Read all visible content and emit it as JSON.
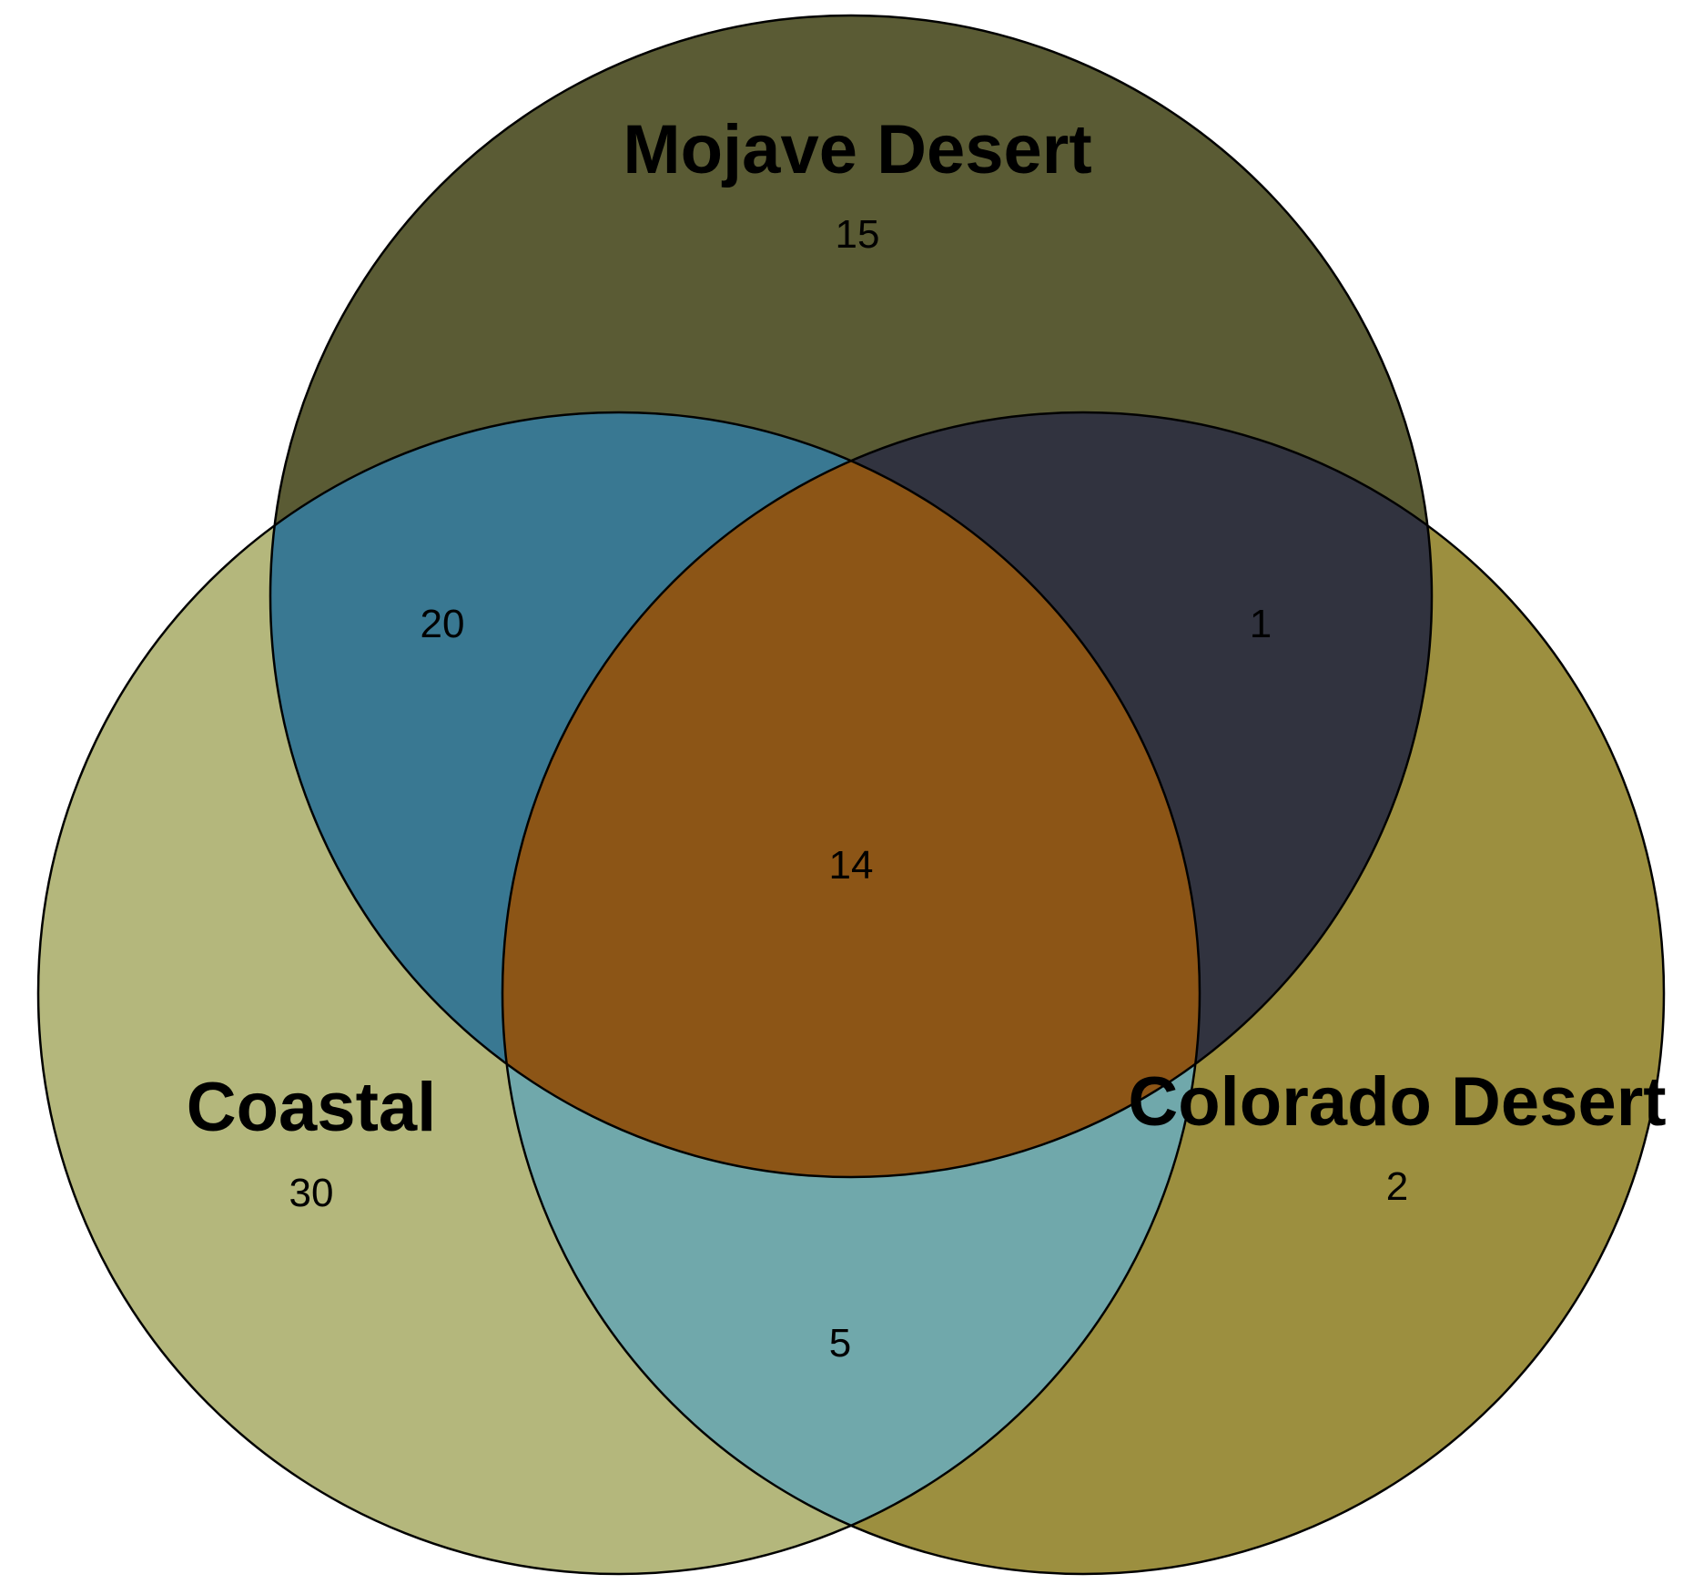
{
  "chart_data": {
    "type": "venn",
    "sets": [
      {
        "id": "mojave",
        "label": "Mojave Desert"
      },
      {
        "id": "coastal",
        "label": "Coastal"
      },
      {
        "id": "colorado",
        "label": "Colorado Desert"
      }
    ],
    "regions": {
      "mojave_only": 15,
      "coastal_only": 30,
      "colorado_only": 2,
      "mojave_coastal": 20,
      "mojave_colorado": 1,
      "coastal_colorado": 5,
      "all_three": 14
    },
    "colors": {
      "mojave_only": "#5a5b34",
      "coastal_only": "#b4b77c",
      "colorado_only": "#9c8f3f",
      "mojave_coastal": "#397892",
      "mojave_colorado": "#31333f",
      "coastal_colorado": "#70a8ab",
      "all_three": "#8c5516",
      "outline": "#000000"
    }
  }
}
